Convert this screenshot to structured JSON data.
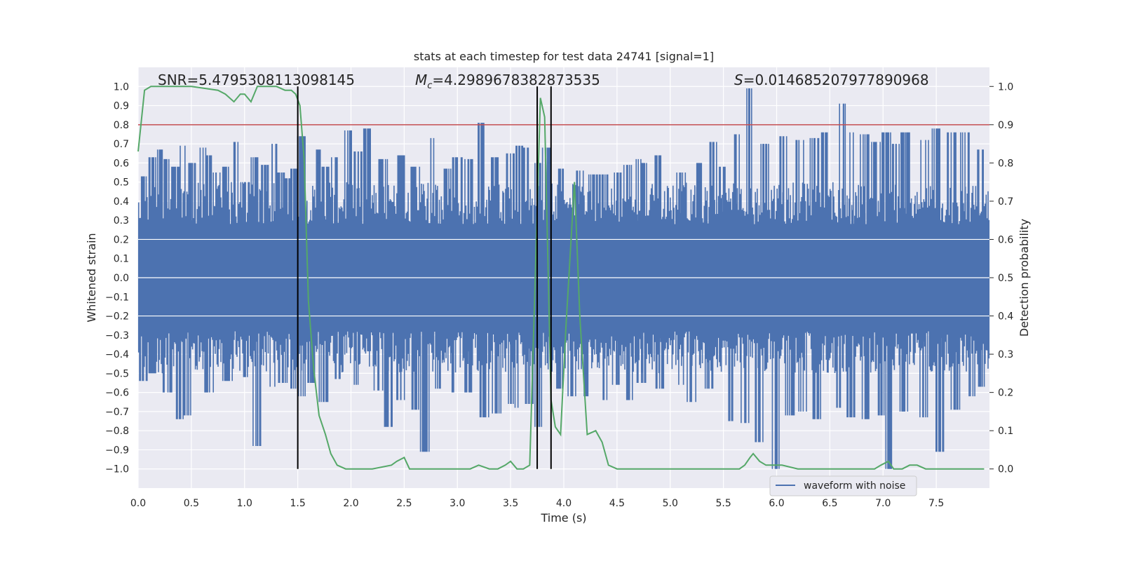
{
  "chart_data": {
    "type": "line",
    "title": "stats at each timestep for test data 24741 [signal=1]",
    "xlabel": "Time (s)",
    "ylabel_left": "Whitened strain",
    "ylabel_right": "Detection probability",
    "xlim": [
      0,
      8
    ],
    "ylim_left": [
      -1.1,
      1.1
    ],
    "ylim_right": [
      -0.05,
      1.05
    ],
    "x_ticks": [
      "0.0",
      "0.5",
      "1.0",
      "1.5",
      "2.0",
      "2.5",
      "3.0",
      "3.5",
      "4.0",
      "4.5",
      "5.0",
      "5.5",
      "6.0",
      "6.5",
      "7.0",
      "7.5"
    ],
    "y_ticks_left": [
      "1.0",
      "0.9",
      "0.8",
      "0.7",
      "0.6",
      "0.5",
      "0.4",
      "0.3",
      "0.2",
      "0.1",
      "0.0",
      "-0.1",
      "-0.2",
      "-0.3",
      "-0.4",
      "-0.5",
      "-0.6",
      "-0.7",
      "-0.8",
      "-0.9",
      "-1.0"
    ],
    "y_ticks_right": [
      "1.0",
      "0.9",
      "0.8",
      "0.7",
      "0.6",
      "0.5",
      "0.4",
      "0.3",
      "0.2",
      "0.1",
      "0.0"
    ],
    "grid": true,
    "legend_position": "lower-right",
    "annotations": {
      "snr": "SNR=5.4795308113098145",
      "mc_symbol": "M",
      "mc_sub": "c",
      "mc_value": "=4.2989678382873535",
      "s_symbol": "S",
      "s_value": "=0.014685207977890968"
    },
    "threshold": {
      "value": 0.8,
      "axis": "left",
      "color": "#c44e52"
    },
    "vertical_lines": [
      1.5,
      3.75,
      3.88
    ],
    "vertical_line_range": [
      -1.0,
      1.0
    ],
    "series": [
      {
        "name": "waveform with noise",
        "color": "#4c72b0",
        "axis": "left",
        "peaks_up": [
          [
            0.05,
            0.53
          ],
          [
            0.13,
            0.63
          ],
          [
            0.2,
            0.67
          ],
          [
            0.27,
            0.62
          ],
          [
            0.35,
            0.58
          ],
          [
            0.44,
            0.69
          ],
          [
            0.5,
            0.6
          ],
          [
            0.61,
            0.68
          ],
          [
            0.67,
            0.64
          ],
          [
            0.73,
            0.55
          ],
          [
            0.83,
            0.58
          ],
          [
            0.9,
            0.71
          ],
          [
            1.0,
            0.5
          ],
          [
            1.1,
            0.63
          ],
          [
            1.2,
            0.59
          ],
          [
            1.26,
            0.7
          ],
          [
            1.35,
            0.55
          ],
          [
            1.4,
            0.52
          ],
          [
            1.46,
            0.57
          ],
          [
            1.53,
            0.74
          ],
          [
            1.68,
            0.67
          ],
          [
            1.77,
            0.58
          ],
          [
            1.86,
            0.63
          ],
          [
            1.97,
            0.77
          ],
          [
            2.07,
            0.66
          ],
          [
            2.14,
            0.78
          ],
          [
            2.3,
            0.62
          ],
          [
            2.46,
            0.64
          ],
          [
            2.6,
            0.58
          ],
          [
            2.75,
            0.73
          ],
          [
            2.9,
            0.57
          ],
          [
            3.0,
            0.63
          ],
          [
            3.1,
            0.62
          ],
          [
            3.23,
            0.81
          ],
          [
            3.36,
            0.63
          ],
          [
            3.5,
            0.65
          ],
          [
            3.58,
            0.69
          ],
          [
            3.66,
            0.68
          ],
          [
            3.76,
            0.6
          ],
          [
            3.83,
            0.68
          ],
          [
            3.97,
            0.57
          ],
          [
            4.15,
            0.56
          ],
          [
            4.28,
            0.54
          ],
          [
            4.37,
            0.54
          ],
          [
            4.5,
            0.55
          ],
          [
            4.6,
            0.59
          ],
          [
            4.7,
            0.62
          ],
          [
            4.75,
            0.6
          ],
          [
            4.87,
            0.64
          ],
          [
            5.1,
            0.55
          ],
          [
            5.25,
            0.6
          ],
          [
            5.41,
            0.71
          ],
          [
            5.5,
            0.58
          ],
          [
            5.62,
            0.75
          ],
          [
            5.74,
            0.99
          ],
          [
            5.88,
            0.7
          ],
          [
            6.06,
            0.74
          ],
          [
            6.21,
            0.72
          ],
          [
            6.36,
            0.73
          ],
          [
            6.46,
            0.76
          ],
          [
            6.63,
            0.91
          ],
          [
            6.72,
            0.76
          ],
          [
            6.83,
            0.75
          ],
          [
            6.93,
            0.71
          ],
          [
            7.03,
            0.76
          ],
          [
            7.12,
            0.7
          ],
          [
            7.21,
            0.76
          ],
          [
            7.4,
            0.72
          ],
          [
            7.5,
            0.78
          ],
          [
            7.64,
            0.76
          ],
          [
            7.77,
            0.76
          ],
          [
            7.9,
            0.67
          ]
        ],
        "peaks_down": [
          [
            0.05,
            -0.54
          ],
          [
            0.13,
            -0.5
          ],
          [
            0.28,
            -0.6
          ],
          [
            0.4,
            -0.74
          ],
          [
            0.46,
            -0.72
          ],
          [
            0.67,
            -0.6
          ],
          [
            0.84,
            -0.54
          ],
          [
            1.0,
            -0.52
          ],
          [
            1.12,
            -0.88
          ],
          [
            1.24,
            -0.57
          ],
          [
            1.36,
            -0.55
          ],
          [
            1.48,
            -0.58
          ],
          [
            1.53,
            -0.62
          ],
          [
            1.62,
            -0.55
          ],
          [
            1.74,
            -0.65
          ],
          [
            1.86,
            -0.53
          ],
          [
            2.05,
            -0.56
          ],
          [
            2.26,
            -0.59
          ],
          [
            2.35,
            -0.78
          ],
          [
            2.47,
            -0.64
          ],
          [
            2.6,
            -0.69
          ],
          [
            2.69,
            -0.91
          ],
          [
            2.83,
            -0.58
          ],
          [
            2.95,
            -0.6
          ],
          [
            3.11,
            -0.6
          ],
          [
            3.25,
            -0.73
          ],
          [
            3.37,
            -0.71
          ],
          [
            3.5,
            -0.66
          ],
          [
            3.57,
            -0.68
          ],
          [
            3.68,
            -0.66
          ],
          [
            3.77,
            -0.78
          ],
          [
            3.95,
            -0.58
          ],
          [
            4.08,
            -0.62
          ],
          [
            4.2,
            -0.62
          ],
          [
            4.37,
            -0.64
          ],
          [
            4.5,
            -0.56
          ],
          [
            4.6,
            -0.64
          ],
          [
            4.73,
            -0.55
          ],
          [
            4.9,
            -0.58
          ],
          [
            5.08,
            -0.56
          ],
          [
            5.2,
            -0.65
          ],
          [
            5.36,
            -0.58
          ],
          [
            5.55,
            -0.75
          ],
          [
            5.7,
            -0.76
          ],
          [
            5.83,
            -0.86
          ],
          [
            6.0,
            -1.0
          ],
          [
            6.12,
            -0.72
          ],
          [
            6.25,
            -0.7
          ],
          [
            6.38,
            -0.74
          ],
          [
            6.57,
            -0.68
          ],
          [
            6.7,
            -0.73
          ],
          [
            6.83,
            -0.74
          ],
          [
            6.98,
            -0.72
          ],
          [
            7.07,
            -1.0
          ],
          [
            7.2,
            -0.7
          ],
          [
            7.38,
            -0.73
          ],
          [
            7.54,
            -0.91
          ],
          [
            7.68,
            -0.69
          ],
          [
            7.82,
            -0.62
          ],
          [
            7.92,
            -0.57
          ]
        ]
      },
      {
        "name": "Detection probability",
        "color": "#55a868",
        "axis": "right",
        "x": [
          0.0,
          0.06,
          0.12,
          0.25,
          0.5,
          0.75,
          0.82,
          0.9,
          0.96,
          1.0,
          1.06,
          1.12,
          1.2,
          1.3,
          1.38,
          1.44,
          1.48,
          1.52,
          1.56,
          1.6,
          1.65,
          1.7,
          1.76,
          1.81,
          1.87,
          1.95,
          2.05,
          2.2,
          2.38,
          2.43,
          2.5,
          2.55,
          2.62,
          2.68,
          2.72,
          2.82,
          3.0,
          3.12,
          3.2,
          3.3,
          3.38,
          3.45,
          3.5,
          3.56,
          3.62,
          3.68,
          3.72,
          3.78,
          3.82,
          3.88,
          3.92,
          3.97,
          4.02,
          4.1,
          4.15,
          4.22,
          4.3,
          4.36,
          4.42,
          4.5,
          4.6,
          4.8,
          5.2,
          5.5,
          5.65,
          5.7,
          5.75,
          5.78,
          5.84,
          5.9,
          5.97,
          6.05,
          6.2,
          6.4,
          6.55,
          6.7,
          6.8,
          6.92,
          6.98,
          7.05,
          7.1,
          7.18,
          7.25,
          7.32,
          7.4,
          7.55,
          7.7,
          7.82,
          7.95
        ],
        "y": [
          0.83,
          0.99,
          1.0,
          1.0,
          1.0,
          0.99,
          0.98,
          0.96,
          0.98,
          0.98,
          0.96,
          1.0,
          1.0,
          1.0,
          0.99,
          0.99,
          0.98,
          0.95,
          0.81,
          0.44,
          0.26,
          0.14,
          0.09,
          0.04,
          0.01,
          0.0,
          0.0,
          0.0,
          0.01,
          0.02,
          0.03,
          0.0,
          0.0,
          0.0,
          0.0,
          0.0,
          0.0,
          0.0,
          0.01,
          0.0,
          0.0,
          0.01,
          0.02,
          0.0,
          0.0,
          0.01,
          0.39,
          0.97,
          0.92,
          0.18,
          0.11,
          0.09,
          0.37,
          0.75,
          0.4,
          0.09,
          0.1,
          0.07,
          0.01,
          0.0,
          0.0,
          0.0,
          0.0,
          0.0,
          0.0,
          0.01,
          0.03,
          0.04,
          0.02,
          0.01,
          0.01,
          0.01,
          0.0,
          0.0,
          0.0,
          0.0,
          0.0,
          0.0,
          0.01,
          0.02,
          0.0,
          0.0,
          0.01,
          0.01,
          0.0,
          0.0,
          0.0,
          0.0,
          0.0
        ]
      }
    ]
  }
}
